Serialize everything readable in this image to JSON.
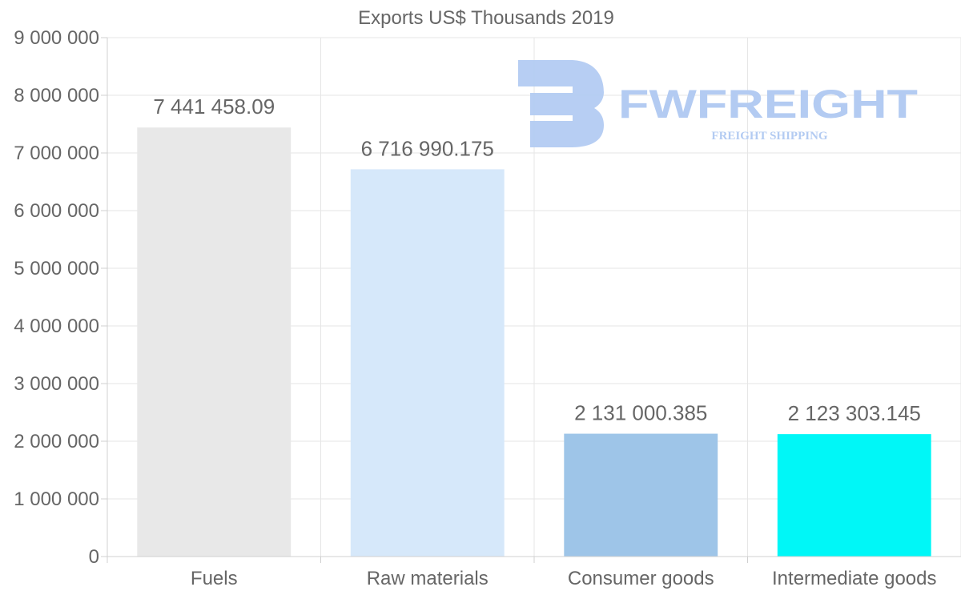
{
  "chart_data": {
    "type": "bar",
    "title": "Exports US$ Thousands 2019",
    "categories": [
      "Fuels",
      "Raw materials",
      "Consumer goods",
      "Intermediate goods"
    ],
    "values": [
      7441458.09,
      6716990.175,
      2131000.385,
      2123303.145
    ],
    "value_labels": [
      "7 441 458.09",
      "6 716 990.175",
      "2 131 000.385",
      "2 123 303.145"
    ],
    "colors": [
      "#e8e8e8",
      "#d6e8fa",
      "#9ec5e8",
      "#00f7f7"
    ],
    "ylim": [
      0,
      9000000
    ],
    "yticks": [
      0,
      1000000,
      2000000,
      3000000,
      4000000,
      5000000,
      6000000,
      7000000,
      8000000,
      9000000
    ],
    "ytick_labels": [
      "0",
      "1 000 000",
      "2 000 000",
      "3 000 000",
      "4 000 000",
      "5 000 000",
      "6 000 000",
      "7 000 000",
      "8 000 000",
      "9 000 000"
    ],
    "xlabel": "",
    "ylabel": "",
    "grid": true,
    "legend": "none"
  },
  "watermark": {
    "brand": "FWFREIGHT",
    "tagline": "FREIGHT SHIPPING",
    "color": "#b3cbf2"
  }
}
